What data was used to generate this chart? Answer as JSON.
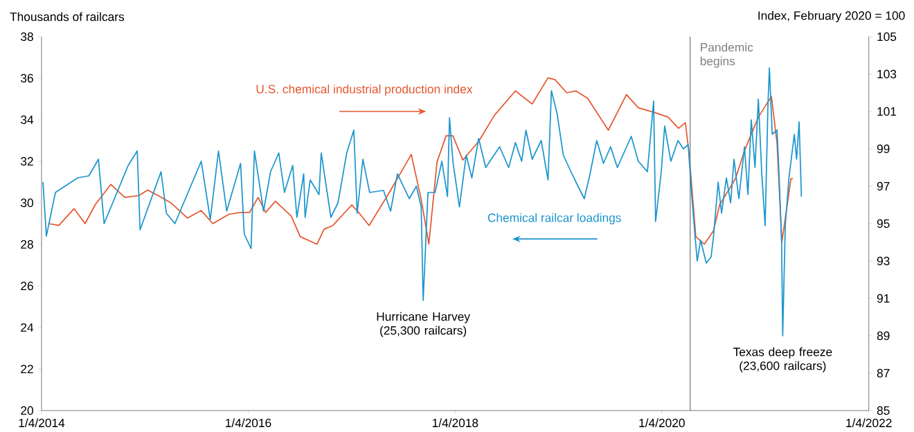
{
  "chart_data": {
    "type": "line",
    "ylabel": "Thousands of railcars",
    "y2label": "Index, February 2020 = 100",
    "xlim": [
      "2014-01-04",
      "2022-01-04"
    ],
    "xticks": [
      {
        "value": "2014-01-04",
        "label": "1/4/2014"
      },
      {
        "value": "2016-01-04",
        "label": "1/4/2016"
      },
      {
        "value": "2018-01-04",
        "label": "1/4/2018"
      },
      {
        "value": "2020-01-04",
        "label": "1/4/2020"
      },
      {
        "value": "2022-01-04",
        "label": "1/4/2022"
      }
    ],
    "ylim": [
      20,
      38
    ],
    "yticks": [
      20,
      22,
      24,
      26,
      28,
      30,
      32,
      34,
      36,
      38
    ],
    "y2lim": [
      85,
      105
    ],
    "y2ticks": [
      85,
      87,
      89,
      91,
      93,
      95,
      97,
      99,
      101,
      103,
      105
    ],
    "ref_lines": [
      {
        "axis": "x",
        "value": "2020-04-13",
        "label": "Pandemic begins",
        "color": "#7f7f7f"
      }
    ],
    "annotations": [
      {
        "text": "Hurricane Harvey (25,300 railcars)",
        "x": "2017-09-13",
        "y": 25.3
      },
      {
        "text": "Texas deep freeze (23,600 railcars)",
        "x": "2021-03-06",
        "y": 23.6
      }
    ],
    "series": [
      {
        "name": "U.S. chemical industrial production index",
        "color": "#e4572e",
        "axis": "y2",
        "x": [
          "2014-01-29",
          "2014-03-06",
          "2014-04-29",
          "2014-06-07",
          "2014-07-12",
          "2014-09-06",
          "2014-10-25",
          "2014-12-13",
          "2015-01-14",
          "2015-03-04",
          "2015-04-07",
          "2015-06-03",
          "2015-07-22",
          "2015-09-01",
          "2015-10-28",
          "2015-12-08",
          "2016-01-09",
          "2016-02-08",
          "2016-03-06",
          "2016-04-09",
          "2016-06-04",
          "2016-07-06",
          "2016-09-03",
          "2016-09-28",
          "2016-10-29",
          "2017-01-04",
          "2017-01-28",
          "2017-03-06",
          "2017-05-14",
          "2017-08-02",
          "2017-09-06",
          "2017-10-03",
          "2017-11-01",
          "2017-12-03",
          "2017-12-27",
          "2018-01-31",
          "2018-03-28",
          "2018-05-23",
          "2018-08-05",
          "2018-10-03",
          "2018-11-28",
          "2018-12-23",
          "2019-02-02",
          "2019-03-06",
          "2019-04-17",
          "2019-06-29",
          "2019-09-01",
          "2019-10-13",
          "2019-12-18",
          "2020-01-26",
          "2020-03-03",
          "2020-03-27",
          "2020-04-09",
          "2020-05-03",
          "2020-06-02",
          "2020-07-04",
          "2020-07-26",
          "2020-09-20",
          "2020-10-22",
          "2020-12-10",
          "2021-01-25",
          "2021-02-14",
          "2021-03-03",
          "2021-04-04",
          "2021-04-11"
        ],
        "values": [
          95.0,
          94.9,
          95.8,
          95.0,
          96.0,
          97.1,
          96.4,
          96.5,
          96.8,
          96.4,
          96.1,
          95.3,
          95.7,
          95.0,
          95.5,
          95.6,
          95.6,
          96.4,
          95.6,
          96.2,
          95.4,
          94.3,
          93.9,
          94.7,
          94.9,
          96.0,
          95.6,
          94.9,
          96.6,
          98.7,
          96.3,
          93.9,
          98.3,
          99.7,
          99.7,
          98.4,
          99.4,
          100.8,
          102.1,
          101.4,
          102.8,
          102.7,
          102.0,
          102.1,
          101.7,
          100.0,
          101.9,
          101.2,
          100.9,
          100.7,
          100.1,
          100.4,
          98.8,
          94.3,
          93.9,
          94.6,
          96.0,
          97.4,
          98.9,
          100.7,
          101.8,
          99.3,
          94.0,
          97.4,
          97.4
        ]
      },
      {
        "name": "Chemical railcar loadings",
        "color": "#1b95cd",
        "x": [
          "2014-01-09",
          "2014-01-21",
          "2014-02-22",
          "2014-05-11",
          "2014-06-20",
          "2014-07-24",
          "2014-08-13",
          "2014-11-06",
          "2014-12-08",
          "2014-12-18",
          "2015-03-02",
          "2015-03-21",
          "2015-04-20",
          "2015-07-22",
          "2015-08-23",
          "2015-09-21",
          "2015-10-20",
          "2015-12-08",
          "2015-12-21",
          "2016-01-14",
          "2016-01-26",
          "2016-02-27",
          "2016-03-23",
          "2016-04-21",
          "2016-05-11",
          "2016-06-09",
          "2016-06-24",
          "2016-07-18",
          "2016-07-23",
          "2016-08-10",
          "2016-09-10",
          "2016-09-18",
          "2016-10-22",
          "2016-11-16",
          "2016-12-17",
          "2017-01-11",
          "2017-01-23",
          "2017-02-12",
          "2017-03-08",
          "2017-04-26",
          "2017-05-21",
          "2017-06-14",
          "2017-07-26",
          "2017-08-20",
          "2017-09-06",
          "2017-09-13",
          "2017-09-30",
          "2017-10-25",
          "2017-11-18",
          "2017-12-08",
          "2017-12-15",
          "2017-12-27",
          "2018-01-19",
          "2018-02-12",
          "2018-03-04",
          "2018-03-28",
          "2018-04-22",
          "2018-06-10",
          "2018-07-12",
          "2018-08-05",
          "2018-08-27",
          "2018-09-11",
          "2018-10-03",
          "2018-11-04",
          "2018-11-28",
          "2018-12-10",
          "2018-12-30",
          "2019-01-21",
          "2019-02-17",
          "2019-03-14",
          "2019-04-05",
          "2019-04-24",
          "2019-05-19",
          "2019-06-12",
          "2019-07-07",
          "2019-07-31",
          "2019-09-18",
          "2019-10-13",
          "2019-11-14",
          "2019-12-06",
          "2019-12-13",
          "2020-01-02",
          "2020-01-14",
          "2020-02-05",
          "2020-03-01",
          "2020-03-20",
          "2020-04-06",
          "2020-04-19",
          "2020-05-01",
          "2020-05-08",
          "2020-05-20",
          "2020-06-09",
          "2020-06-26",
          "2020-07-04",
          "2020-07-21",
          "2020-08-02",
          "2020-08-19",
          "2020-09-03",
          "2020-09-15",
          "2020-10-02",
          "2020-10-22",
          "2020-11-03",
          "2020-11-15",
          "2020-11-28",
          "2020-12-10",
          "2020-12-22",
          "2021-01-03",
          "2021-01-13",
          "2021-01-18",
          "2021-01-28",
          "2021-02-14",
          "2021-02-21",
          "2021-03-02",
          "2021-03-06",
          "2021-03-15",
          "2021-03-28",
          "2021-04-16",
          "2021-04-24",
          "2021-05-03",
          "2021-05-11"
        ],
        "values": [
          31.0,
          28.4,
          30.5,
          31.2,
          31.3,
          32.1,
          29.0,
          31.8,
          32.5,
          28.7,
          31.5,
          29.5,
          29.0,
          32.0,
          29.2,
          32.5,
          29.6,
          31.9,
          28.5,
          27.8,
          32.5,
          29.6,
          31.5,
          32.4,
          30.5,
          31.8,
          29.3,
          31.4,
          29.3,
          31.1,
          30.4,
          32.4,
          29.3,
          30.0,
          32.4,
          33.5,
          29.5,
          32.1,
          30.5,
          30.6,
          29.6,
          31.4,
          30.2,
          30.8,
          29.8,
          25.3,
          30.5,
          30.5,
          32.0,
          30.3,
          34.1,
          32.0,
          29.8,
          32.3,
          31.2,
          33.1,
          31.7,
          32.7,
          31.7,
          32.9,
          32.0,
          33.5,
          32.1,
          33.0,
          31.1,
          35.4,
          34.3,
          32.3,
          31.5,
          30.8,
          30.2,
          31.3,
          33.0,
          31.9,
          32.7,
          31.7,
          33.2,
          32.0,
          31.5,
          34.9,
          29.1,
          31.5,
          33.7,
          32.0,
          33.0,
          32.6,
          32.8,
          30.3,
          28.3,
          27.2,
          28.2,
          27.1,
          27.4,
          28.3,
          31.0,
          29.5,
          31.2,
          30.0,
          32.1,
          30.2,
          32.7,
          30.4,
          34.0,
          31.7,
          35.0,
          31.4,
          28.9,
          34.8,
          36.5,
          33.3,
          33.5,
          31.4,
          28.1,
          23.6,
          28.9,
          31.2,
          33.3,
          32.1,
          33.9,
          30.3
        ]
      }
    ]
  }
}
